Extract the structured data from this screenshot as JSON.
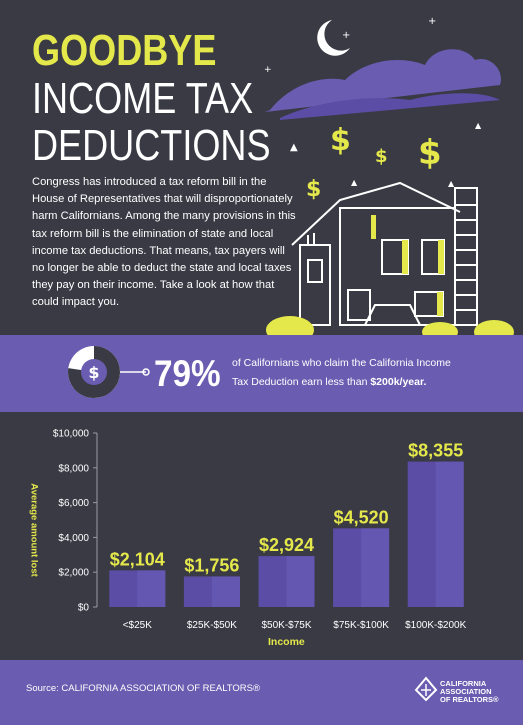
{
  "header": {
    "title_line1": "GOODBYE",
    "title_line2": "INCOME TAX",
    "title_line3": "DEDUCTIONS",
    "intro": "Congress has introduced a tax reform bill in the House of Representatives that will disproportionately harm Californians. Among the many provisions in this tax reform bill is the elimination of state and local income tax deductions. That means, tax payers will no longer be able to deduct the state and local taxes they pay on their income. Take a look at how that could impact you."
  },
  "stat": {
    "percent": "79%",
    "line1": "of Californians who claim the California Income",
    "line2_prefix": "Tax Deduction earn less than ",
    "line2_bold": "$200k/year.",
    "icon_symbol": "$"
  },
  "chart_data": {
    "type": "bar",
    "categories": [
      "<$25K",
      "$25K-$50K",
      "$50K-$75K",
      "$75K-$100K",
      "$100K-$200K"
    ],
    "values": [
      2104,
      1756,
      2924,
      4520,
      8355
    ],
    "data_labels": [
      "$2,104",
      "$1,756",
      "$2,924",
      "$4,520",
      "$8,355"
    ],
    "ylabel": "Average amount lost",
    "xlabel": "Income",
    "ylim": [
      0,
      10000
    ],
    "yticks": [
      0,
      2000,
      4000,
      6000,
      8000,
      10000
    ],
    "ytick_labels": [
      "$0",
      "$2,000",
      "$4,000",
      "$6,000",
      "$8,000",
      "$10,000"
    ],
    "grid": false,
    "bar_color": "#5b4da5",
    "label_color": "#e4e84a"
  },
  "footer": {
    "source": "Source: CALIFORNIA ASSOCIATION OF REALTORS®",
    "logo_text": [
      "CALIFORNIA",
      "ASSOCIATION",
      "OF REALTORS®"
    ]
  },
  "colors": {
    "background": "#3a3a45",
    "accent_yellow": "#e4e84a",
    "purple": "#6a5cb0"
  }
}
